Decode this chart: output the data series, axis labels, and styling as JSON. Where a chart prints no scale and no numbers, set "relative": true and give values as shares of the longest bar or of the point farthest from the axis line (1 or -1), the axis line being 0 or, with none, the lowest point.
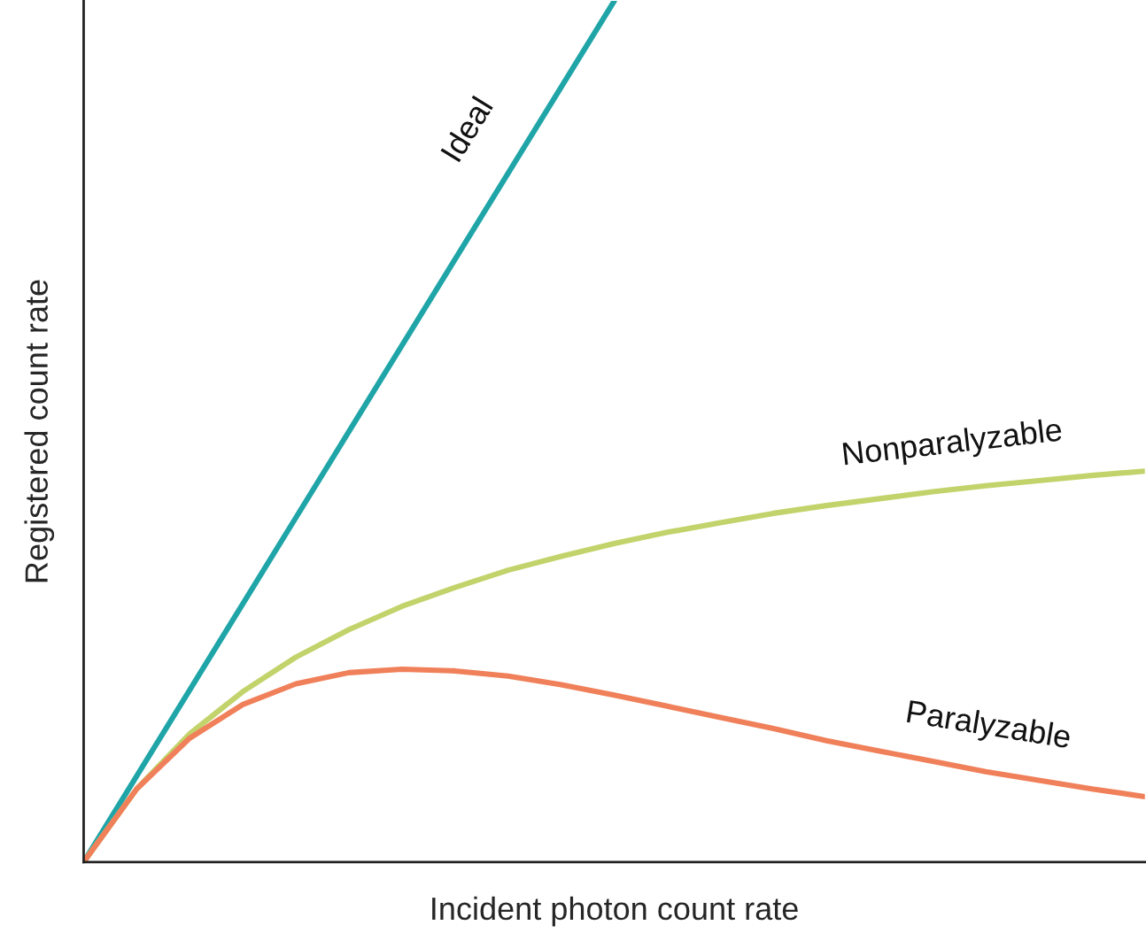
{
  "chart_data": {
    "type": "line",
    "relative": true,
    "xlabel": "Incident photon count rate",
    "ylabel": "Registered count rate",
    "categories": [
      null,
      null,
      null,
      null,
      null,
      null,
      null,
      null,
      null,
      null,
      null,
      null,
      null,
      null,
      null,
      null,
      null,
      null,
      null,
      null,
      null
    ],
    "series": [
      {
        "name": "Ideal",
        "color": "#1fa5a8",
        "values": [
          0,
          0.1,
          0.2,
          0.3,
          0.4,
          0.5,
          0.6,
          0.7,
          0.8,
          0.9,
          1.0,
          null,
          null,
          null,
          null,
          null,
          null,
          null,
          null,
          null,
          null
        ]
      },
      {
        "name": "Nonparalyzable",
        "color": "#c3d36b",
        "values": [
          0,
          0.085,
          0.149,
          0.198,
          0.238,
          0.27,
          0.297,
          0.319,
          0.339,
          0.355,
          0.37,
          0.383,
          0.394,
          0.405,
          0.414,
          0.422,
          0.43,
          0.437,
          0.443,
          0.449,
          0.454
        ]
      },
      {
        "name": "Paralyzable",
        "color": "#f0805a",
        "values": [
          0,
          0.085,
          0.144,
          0.183,
          0.207,
          0.22,
          0.224,
          0.222,
          0.216,
          0.206,
          0.194,
          0.181,
          0.168,
          0.155,
          0.141,
          0.129,
          0.117,
          0.105,
          0.095,
          0.085,
          0.076
        ]
      }
    ]
  }
}
